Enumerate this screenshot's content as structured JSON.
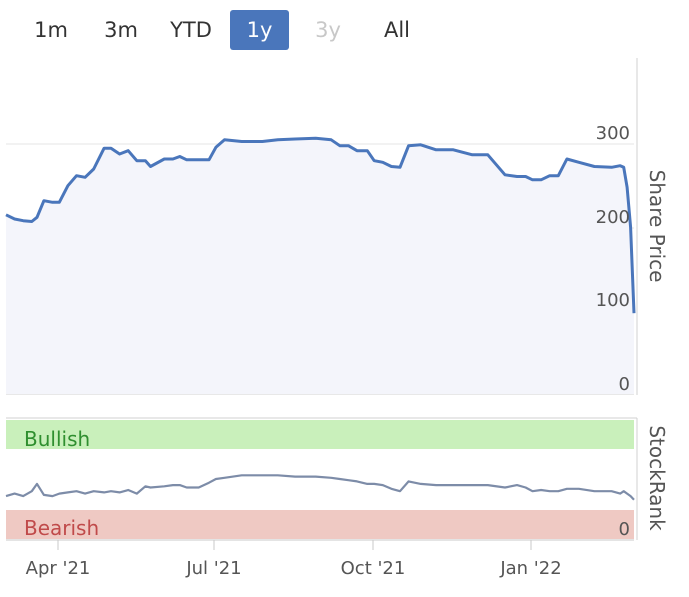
{
  "range_selector": {
    "buttons": [
      {
        "label": "1m",
        "state": "normal"
      },
      {
        "label": "3m",
        "state": "normal"
      },
      {
        "label": "YTD",
        "state": "normal"
      },
      {
        "label": "1y",
        "state": "active"
      },
      {
        "label": "3y",
        "state": "disabled"
      },
      {
        "label": "All",
        "state": "normal"
      }
    ]
  },
  "colors": {
    "line": "#4a76bb",
    "area_fill": "#f4f5fb",
    "bullish_band": "#c9f0bb",
    "bearish_band": "#efc9c3",
    "bullish_text": "#2f8f2f",
    "bearish_text": "#c04a4a",
    "grid": "#e6e6e6"
  },
  "chart_data": [
    {
      "type": "line",
      "ylabel": "Share Price",
      "ylim": [
        0,
        330
      ],
      "yticks": [
        "0",
        "100",
        "200",
        "300"
      ],
      "xticks": [
        "Apr '21",
        "Jul '21",
        "Oct '21",
        "Jan '22"
      ],
      "x_range": [
        "2021-03-05",
        "2022-03-05"
      ],
      "series": [
        {
          "x": [
            "2021-03-05",
            "2021-03-10",
            "2021-03-15",
            "2021-03-20",
            "2021-03-23",
            "2021-03-27",
            "2021-04-01",
            "2021-04-05",
            "2021-04-10",
            "2021-04-15",
            "2021-04-20",
            "2021-04-25",
            "2021-05-01",
            "2021-05-05",
            "2021-05-10",
            "2021-05-15",
            "2021-05-20",
            "2021-05-25",
            "2021-05-28",
            "2021-06-05",
            "2021-06-10",
            "2021-06-14",
            "2021-06-18",
            "2021-06-25",
            "2021-07-01",
            "2021-07-05",
            "2021-07-10",
            "2021-07-20",
            "2021-08-01",
            "2021-08-10",
            "2021-08-20",
            "2021-09-01",
            "2021-09-10",
            "2021-09-15",
            "2021-09-20",
            "2021-09-25",
            "2021-10-01",
            "2021-10-05",
            "2021-10-10",
            "2021-10-15",
            "2021-10-20",
            "2021-10-25",
            "2021-11-01",
            "2021-11-10",
            "2021-11-20",
            "2021-12-01",
            "2021-12-10",
            "2021-12-20",
            "2021-12-27",
            "2022-01-01",
            "2022-01-05",
            "2022-01-10",
            "2022-01-15",
            "2022-01-20",
            "2022-01-25",
            "2022-02-01",
            "2022-02-10",
            "2022-02-20",
            "2022-02-25",
            "2022-02-27",
            "2022-03-01",
            "2022-03-03",
            "2022-03-05"
          ],
          "values": [
            215,
            210,
            208,
            207,
            212,
            232,
            230,
            230,
            250,
            262,
            260,
            270,
            295,
            295,
            288,
            292,
            280,
            280,
            273,
            282,
            282,
            285,
            281,
            281,
            281,
            296,
            305,
            303,
            303,
            305,
            306,
            307,
            305,
            298,
            298,
            292,
            292,
            280,
            278,
            273,
            272,
            298,
            299,
            293,
            293,
            287,
            287,
            263,
            261,
            261,
            257,
            257,
            262,
            262,
            282,
            278,
            273,
            272,
            274,
            272,
            248,
            200,
            97
          ]
        }
      ]
    },
    {
      "type": "line",
      "ylabel": "StockRank",
      "yticks": [
        "0"
      ],
      "bands": [
        "Bullish",
        "Bearish"
      ],
      "ylim": [
        0,
        100
      ],
      "series": [
        {
          "x": [
            "2021-03-05",
            "2021-03-10",
            "2021-03-15",
            "2021-03-20",
            "2021-03-23",
            "2021-03-27",
            "2021-04-01",
            "2021-04-05",
            "2021-04-10",
            "2021-04-15",
            "2021-04-20",
            "2021-04-25",
            "2021-05-01",
            "2021-05-05",
            "2021-05-10",
            "2021-05-15",
            "2021-05-20",
            "2021-05-25",
            "2021-05-28",
            "2021-06-05",
            "2021-06-10",
            "2021-06-14",
            "2021-06-18",
            "2021-06-25",
            "2021-07-01",
            "2021-07-05",
            "2021-07-10",
            "2021-07-20",
            "2021-08-01",
            "2021-08-10",
            "2021-08-20",
            "2021-09-01",
            "2021-09-10",
            "2021-09-15",
            "2021-09-20",
            "2021-09-25",
            "2021-10-01",
            "2021-10-05",
            "2021-10-10",
            "2021-10-15",
            "2021-10-20",
            "2021-10-25",
            "2021-11-01",
            "2021-11-10",
            "2021-11-20",
            "2021-12-01",
            "2021-12-10",
            "2021-12-20",
            "2021-12-27",
            "2022-01-01",
            "2022-01-05",
            "2022-01-10",
            "2022-01-15",
            "2022-01-20",
            "2022-01-25",
            "2022-02-01",
            "2022-02-10",
            "2022-02-20",
            "2022-02-25",
            "2022-02-27",
            "2022-03-01",
            "2022-03-03",
            "2022-03-05"
          ],
          "values": [
            36,
            38,
            36,
            40,
            46,
            37,
            36,
            38,
            39,
            40,
            38,
            40,
            39,
            40,
            39,
            41,
            38,
            44,
            43,
            44,
            45,
            45,
            43,
            43,
            47,
            50,
            51,
            53,
            53,
            53,
            52,
            52,
            51,
            50,
            49,
            48,
            46,
            46,
            45,
            42,
            40,
            48,
            46,
            45,
            45,
            45,
            45,
            43,
            45,
            43,
            40,
            41,
            40,
            40,
            42,
            42,
            40,
            40,
            38,
            40,
            38,
            36,
            33
          ]
        }
      ]
    }
  ]
}
